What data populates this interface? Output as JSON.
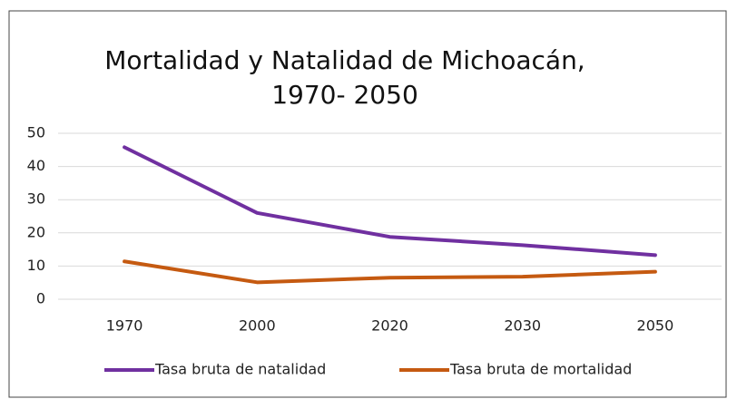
{
  "chart_data": {
    "type": "line",
    "title": [
      "Mortalidad y Natalidad de Michoacán,",
      "1970- 2050"
    ],
    "categories": [
      "1970",
      "2000",
      "2020",
      "2030",
      "2050"
    ],
    "series": [
      {
        "name": "Tasa bruta de natalidad",
        "color": "#7030a0",
        "values": [
          45.8,
          26,
          18.8,
          16.3,
          13.3
        ]
      },
      {
        "name": "Tasa bruta de mortalidad",
        "color": "#c55a11",
        "values": [
          11.4,
          5.1,
          6.5,
          6.8,
          8.3
        ]
      }
    ],
    "ylim": [
      0,
      50
    ],
    "yticks": [
      0,
      10,
      20,
      30,
      40,
      50
    ],
    "grid": true,
    "legend": "bottom"
  }
}
